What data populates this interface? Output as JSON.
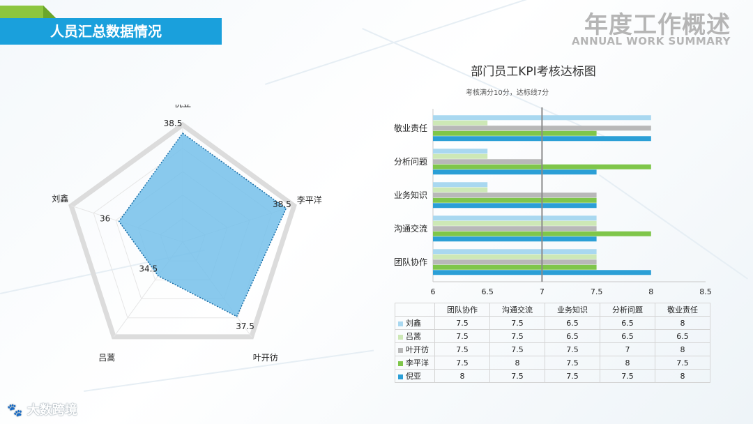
{
  "header": {
    "section_title": "人员汇总数据情况"
  },
  "brand": {
    "title_cn": "年度工作概述",
    "title_en": "ANNUAL WORK SUMMARY"
  },
  "watermark": {
    "text": "大数跨境"
  },
  "colors": {
    "header_blue": "#1aa0dc",
    "header_green": "#8dc63f",
    "radar_fill": "#74c0ea",
    "radar_stroke": "#1a6fa8",
    "reference_line": "#8a8a8a"
  },
  "chart_data": [
    {
      "type": "radar",
      "axes": [
        "倪亚",
        "李平洋",
        "叶开彷",
        "吕蒿",
        "刘鑫"
      ],
      "values": [
        38.5,
        38.5,
        37.5,
        34.5,
        36
      ],
      "value_labels": [
        "38.5",
        "38.5",
        "37.5",
        "34.5",
        "36"
      ],
      "rmin": 32,
      "rmax": 39,
      "rings": 5
    },
    {
      "type": "bar",
      "orientation": "horizontal",
      "title": "部门员工KPI考核达标图",
      "subtitle": "考核满分10分，达标线7分",
      "categories": [
        "团队协作",
        "沟通交流",
        "业务知识",
        "分析问题",
        "敬业责任"
      ],
      "xlim": [
        6,
        8.5
      ],
      "xticks": [
        "6",
        "6.5",
        "7",
        "7.5",
        "8",
        "8.5"
      ],
      "reference_x": 7,
      "series": [
        {
          "name": "刘鑫",
          "color": "#a9d8f0",
          "values": [
            7.5,
            7.5,
            6.5,
            6.5,
            8
          ]
        },
        {
          "name": "吕蒿",
          "color": "#cde8b6",
          "values": [
            7.5,
            7.5,
            6.5,
            6.5,
            6.5
          ]
        },
        {
          "name": "叶开彷",
          "color": "#b8b8b8",
          "values": [
            7.5,
            7.5,
            7.5,
            7,
            8
          ]
        },
        {
          "name": "李平洋",
          "color": "#7fc64a",
          "values": [
            7.5,
            8,
            7.5,
            8,
            7.5
          ]
        },
        {
          "name": "倪亚",
          "color": "#2b9fd6",
          "values": [
            8,
            7.5,
            7.5,
            7.5,
            8
          ]
        }
      ]
    }
  ]
}
